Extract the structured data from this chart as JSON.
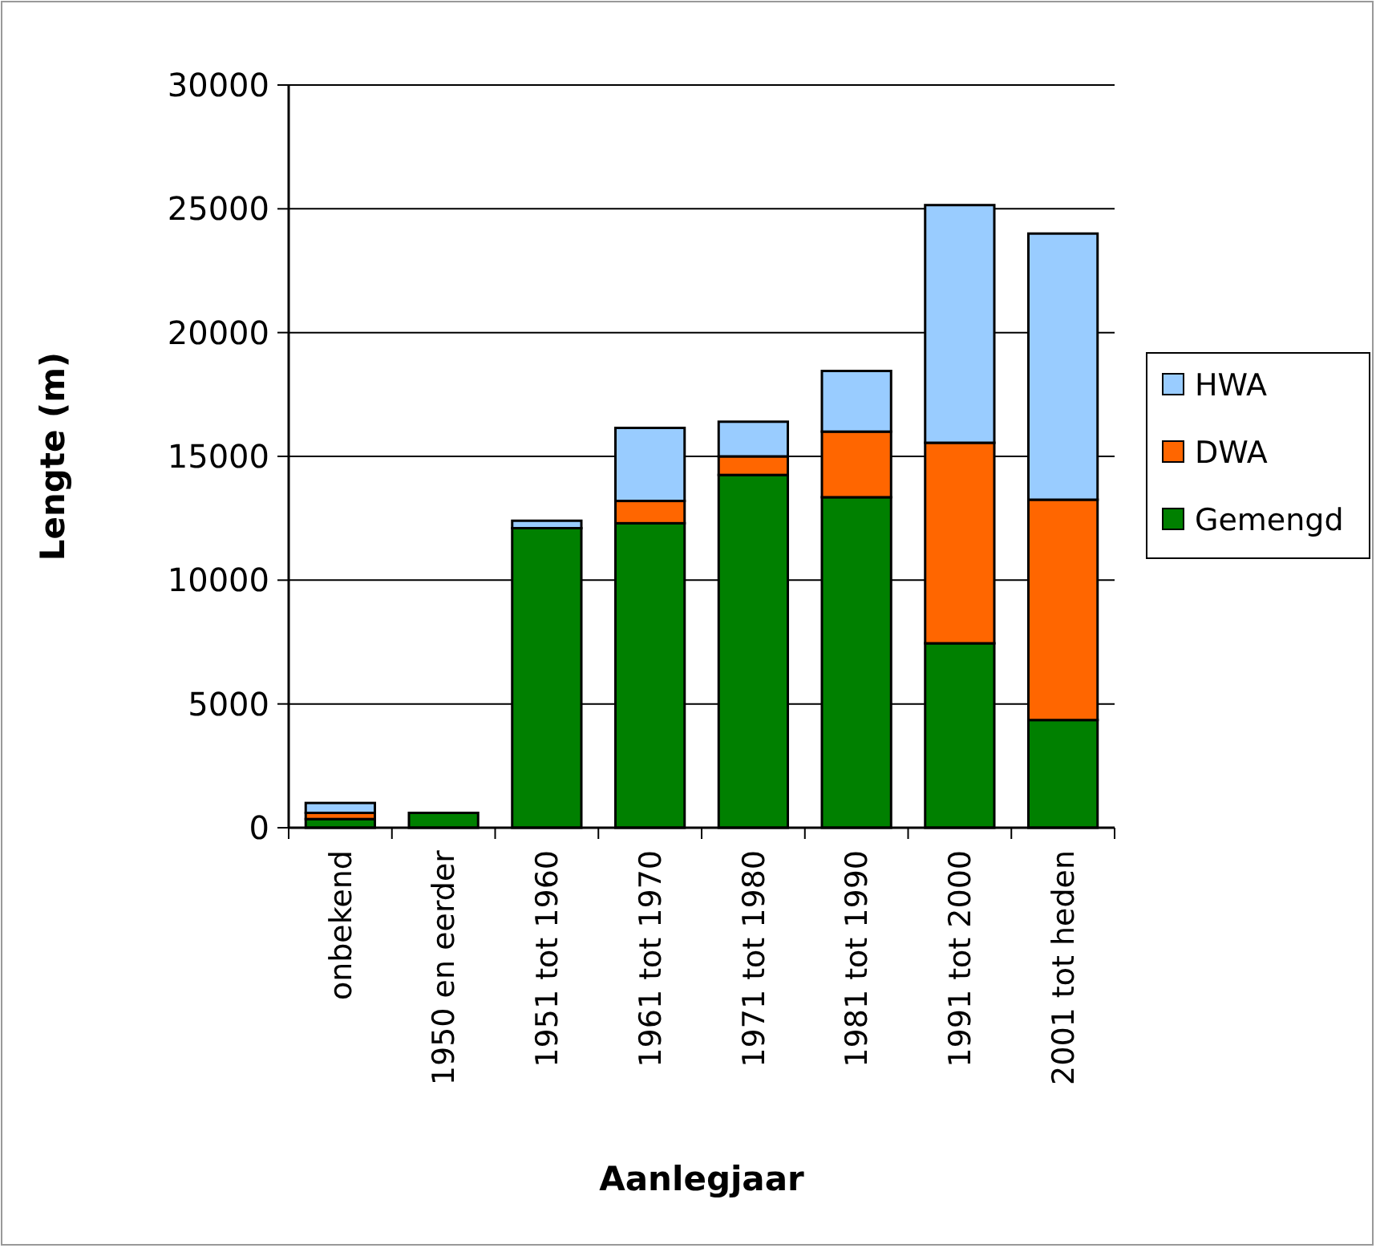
{
  "chart_data": {
    "type": "bar",
    "xlabel": "Aanlegjaar",
    "ylabel": "Lengte (m)",
    "stacked": true,
    "categories": [
      "onbekend",
      "1950 en eerder",
      "1951 tot 1960",
      "1961 tot 1970",
      "1971 tot 1980",
      "1981 tot 1990",
      "1991 tot 2000",
      "2001 tot heden"
    ],
    "series": [
      {
        "name": "Gemengd",
        "color": "#008000",
        "values": [
          350,
          600,
          12100,
          12300,
          14250,
          13350,
          7450,
          4350
        ]
      },
      {
        "name": "DWA",
        "color": "#ff6600",
        "values": [
          250,
          0,
          0,
          900,
          750,
          2650,
          8100,
          8900
        ]
      },
      {
        "name": "HWA",
        "color": "#99ccff",
        "values": [
          400,
          0,
          300,
          2950,
          1400,
          2450,
          9600,
          10750
        ]
      }
    ],
    "ylim": [
      0,
      30000
    ],
    "yticks": [
      0,
      5000,
      10000,
      15000,
      20000,
      25000,
      30000
    ],
    "grid": "y",
    "legend": "right"
  }
}
